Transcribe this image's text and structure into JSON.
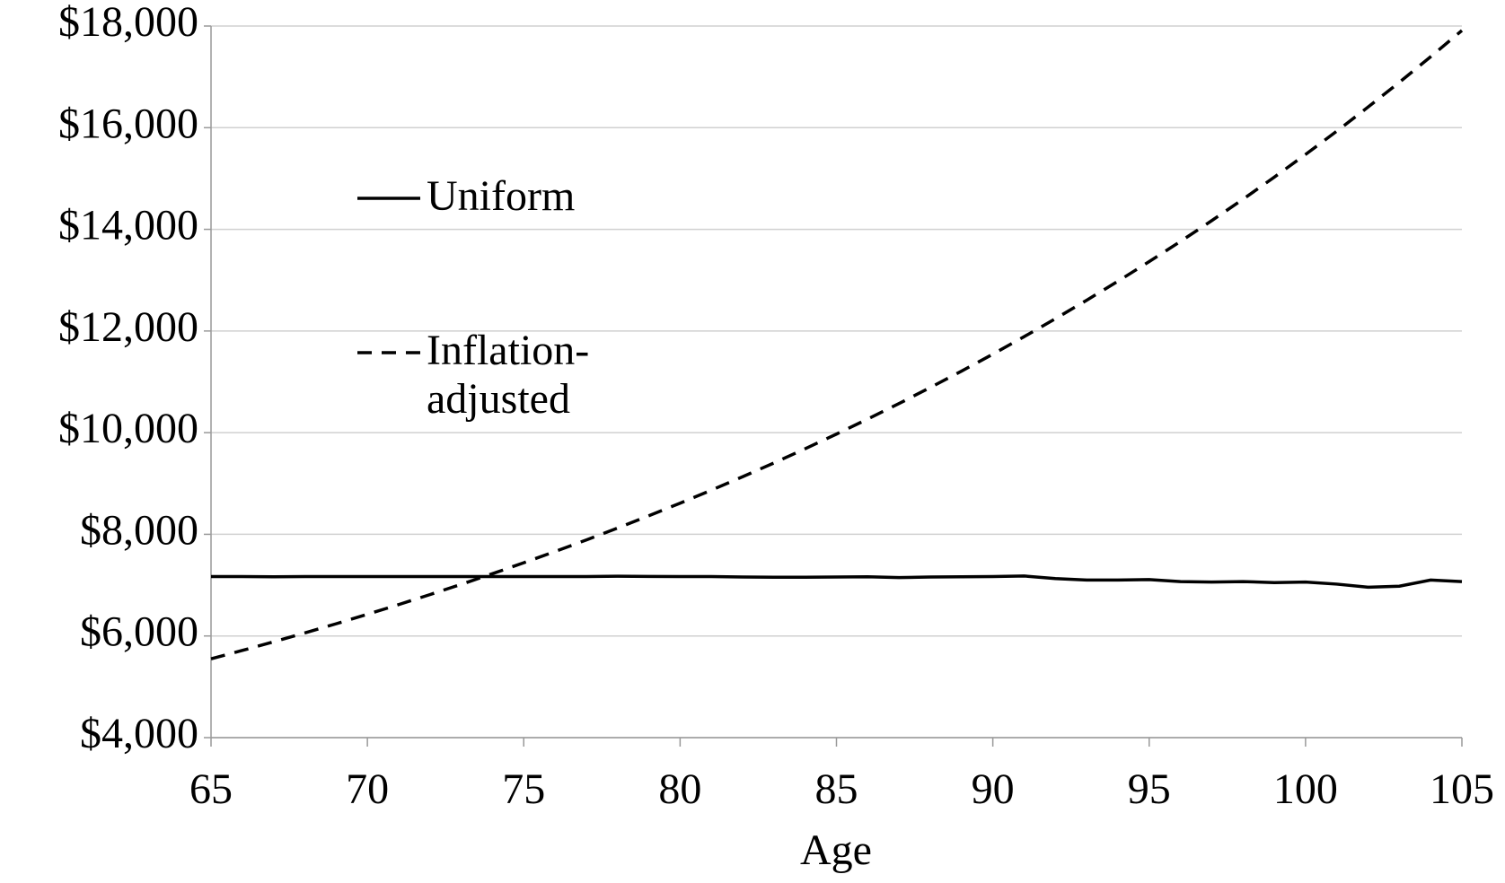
{
  "chart_data": {
    "type": "line",
    "x_label": "Age",
    "x": [
      65,
      66,
      67,
      68,
      69,
      70,
      71,
      72,
      73,
      74,
      75,
      76,
      77,
      78,
      79,
      80,
      81,
      82,
      83,
      84,
      85,
      86,
      87,
      88,
      89,
      90,
      91,
      92,
      93,
      94,
      95,
      96,
      97,
      98,
      99,
      100,
      101,
      102,
      103,
      104,
      105
    ],
    "series": [
      {
        "name": "Uniform",
        "color": "#000000",
        "dash": false,
        "values": [
          7170,
          7170,
          7165,
          7170,
          7170,
          7170,
          7168,
          7170,
          7170,
          7170,
          7170,
          7170,
          7170,
          7175,
          7172,
          7170,
          7168,
          7160,
          7155,
          7155,
          7160,
          7165,
          7150,
          7160,
          7165,
          7170,
          7180,
          7130,
          7100,
          7100,
          7110,
          7070,
          7060,
          7070,
          7050,
          7060,
          7020,
          6960,
          6980,
          7100,
          7070
        ]
      },
      {
        "name": "Inflation-adjusted",
        "color": "#000000",
        "dash": true,
        "values": [
          5550,
          5715,
          5885,
          6060,
          6240,
          6426,
          6617,
          6814,
          7016,
          7225,
          7440,
          7661,
          7889,
          8123,
          8365,
          8613,
          8869,
          9133,
          9404,
          9684,
          9972,
          10268,
          10573,
          10888,
          11211,
          11544,
          11888,
          12241,
          12605,
          12979,
          13365,
          13762,
          14171,
          14592,
          15026,
          15473,
          15932,
          16406,
          16893,
          17395,
          17912
        ]
      }
    ],
    "xlim": [
      65,
      105
    ],
    "xticks": [
      65,
      70,
      75,
      80,
      85,
      90,
      95,
      100,
      105
    ],
    "ylim": [
      4000,
      18000
    ],
    "yticks": [
      {
        "value": 4000,
        "label": "$4,000"
      },
      {
        "value": 6000,
        "label": "$6,000"
      },
      {
        "value": 8000,
        "label": "$8,000"
      },
      {
        "value": 10000,
        "label": "$10,000"
      },
      {
        "value": 12000,
        "label": "$12,000"
      },
      {
        "value": 14000,
        "label": "$14,000"
      },
      {
        "value": 16000,
        "label": "$16,000"
      },
      {
        "value": 18000,
        "label": "$18,000"
      }
    ],
    "grid": true,
    "legend": "upper left"
  }
}
